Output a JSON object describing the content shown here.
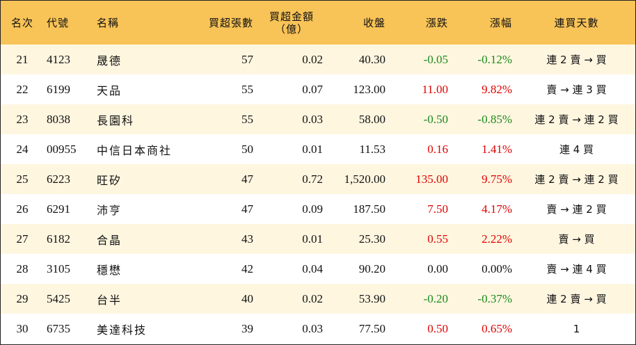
{
  "headers": {
    "rank": "名次",
    "code": "代號",
    "name": "名稱",
    "net_volume": "買超張數",
    "net_amount_line1": "買超金額",
    "net_amount_line2": "（億）",
    "close": "收盤",
    "change": "漲跌",
    "change_pct": "漲幅",
    "streak": "連買天數"
  },
  "colors": {
    "header_bg": "#f8c357",
    "row_alt_bg": "#fff6e0",
    "up": "#e00000",
    "down": "#1a8a1a"
  },
  "rows": [
    {
      "rank": "21",
      "code": "4123",
      "name": "晟德",
      "net_volume": "57",
      "net_amount": "0.02",
      "close": "40.30",
      "change": "-0.05",
      "change_pct": "-0.12%",
      "streak": "連 2 賣 → 買",
      "dir": "down"
    },
    {
      "rank": "22",
      "code": "6199",
      "name": "天品",
      "net_volume": "55",
      "net_amount": "0.07",
      "close": "123.00",
      "change": "11.00",
      "change_pct": "9.82%",
      "streak": "賣 → 連 3 買",
      "dir": "up"
    },
    {
      "rank": "23",
      "code": "8038",
      "name": "長園科",
      "net_volume": "55",
      "net_amount": "0.03",
      "close": "58.00",
      "change": "-0.50",
      "change_pct": "-0.85%",
      "streak": "連 2 賣 → 連 2 買",
      "dir": "down"
    },
    {
      "rank": "24",
      "code": "00955",
      "name": "中信日本商社",
      "net_volume": "50",
      "net_amount": "0.01",
      "close": "11.53",
      "change": "0.16",
      "change_pct": "1.41%",
      "streak": "連 4 買",
      "dir": "up"
    },
    {
      "rank": "25",
      "code": "6223",
      "name": "旺矽",
      "net_volume": "47",
      "net_amount": "0.72",
      "close": "1,520.00",
      "change": "135.00",
      "change_pct": "9.75%",
      "streak": "連 2 賣 → 連 2 買",
      "dir": "up"
    },
    {
      "rank": "26",
      "code": "6291",
      "name": "沛亨",
      "net_volume": "47",
      "net_amount": "0.09",
      "close": "187.50",
      "change": "7.50",
      "change_pct": "4.17%",
      "streak": "賣 → 連 2 買",
      "dir": "up"
    },
    {
      "rank": "27",
      "code": "6182",
      "name": "合晶",
      "net_volume": "43",
      "net_amount": "0.01",
      "close": "25.30",
      "change": "0.55",
      "change_pct": "2.22%",
      "streak": "賣 → 買",
      "dir": "up"
    },
    {
      "rank": "28",
      "code": "3105",
      "name": "穩懋",
      "net_volume": "42",
      "net_amount": "0.04",
      "close": "90.20",
      "change": "0.00",
      "change_pct": "0.00%",
      "streak": "賣 → 連 4 買",
      "dir": "flat"
    },
    {
      "rank": "29",
      "code": "5425",
      "name": "台半",
      "net_volume": "40",
      "net_amount": "0.02",
      "close": "53.90",
      "change": "-0.20",
      "change_pct": "-0.37%",
      "streak": "連 2 賣 → 買",
      "dir": "down"
    },
    {
      "rank": "30",
      "code": "6735",
      "name": "美達科技",
      "net_volume": "39",
      "net_amount": "0.03",
      "close": "77.50",
      "change": "0.50",
      "change_pct": "0.65%",
      "streak": "1",
      "dir": "up"
    }
  ]
}
